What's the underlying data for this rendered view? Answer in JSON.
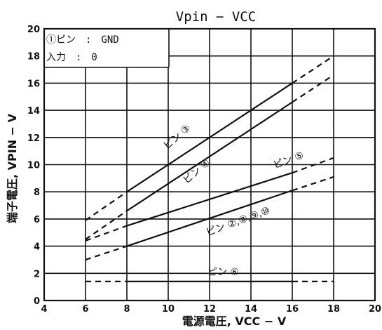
{
  "chart_data": {
    "type": "line",
    "title": "Vpin − VCC",
    "xlabel": "電源電圧, VCC − V",
    "ylabel": "端子電圧, VPIN − V",
    "xlim": [
      4,
      20
    ],
    "ylim": [
      0,
      20
    ],
    "xticks": [
      4,
      6,
      8,
      10,
      12,
      14,
      16,
      18,
      20
    ],
    "yticks": [
      0,
      2,
      4,
      6,
      8,
      10,
      12,
      14,
      16,
      18,
      20
    ],
    "grid": true,
    "notes": [
      "①ピン　:　GND",
      "入力　:　0"
    ],
    "solid_range": [
      8,
      16
    ],
    "series": [
      {
        "name": "ピン ③",
        "x": [
          6,
          8,
          16,
          18
        ],
        "y": [
          5.9,
          8.0,
          16.0,
          18.0
        ]
      },
      {
        "name": "ピン ④",
        "x": [
          6,
          8,
          16,
          18
        ],
        "y": [
          4.5,
          6.6,
          14.6,
          16.6
        ]
      },
      {
        "name": "ピン ⑤",
        "x": [
          6,
          8,
          16,
          18
        ],
        "y": [
          4.4,
          5.5,
          9.4,
          10.5
        ]
      },
      {
        "name": "ピン ②,⑧,⑨,⑩",
        "x": [
          6,
          8,
          16,
          18
        ],
        "y": [
          3.0,
          4.0,
          8.1,
          9.1
        ]
      },
      {
        "name": "ピン ⑥",
        "x": [
          6,
          8,
          16,
          18
        ],
        "y": [
          1.4,
          1.4,
          1.4,
          1.4
        ]
      }
    ]
  }
}
